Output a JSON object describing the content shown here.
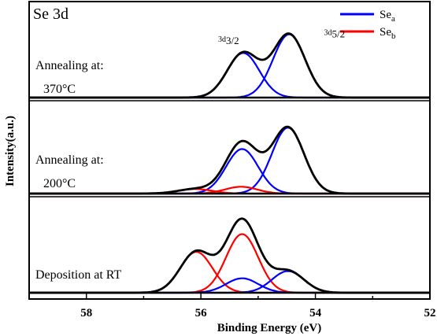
{
  "chart_data": {
    "type": "line",
    "title": "Se 3d",
    "xlabel": "Binding Energy (eV)",
    "ylabel": "Intensity(a.u.)",
    "xlim": [
      59,
      52
    ],
    "x_reversed": true,
    "xticks": [
      58,
      56,
      54,
      52
    ],
    "yticks_shown": false,
    "legend": {
      "placement": "top-right",
      "entries": [
        {
          "base": "Se",
          "sub": "a",
          "color": "#0000ff"
        },
        {
          "base": "Se",
          "sub": "b",
          "color": "#ff0000"
        }
      ]
    },
    "peak_labels": [
      {
        "base": "3d",
        "sub": "3/2",
        "x": 55.7,
        "y": 1.2
      },
      {
        "base": "3d",
        "sub": "5/2",
        "x": 53.85,
        "y": 1.35
      }
    ],
    "colors": {
      "envelope": "#000000",
      "Se_a": "#0000ff",
      "Se_b": "#ff0000"
    },
    "panels": [
      {
        "label_lines": [
          "Annealing at:",
          "370°C"
        ],
        "ymax": 1.8,
        "components": [
          {
            "group": "Se_a",
            "color": "#0000ff",
            "center": 55.26,
            "amplitude": 1.0,
            "width": 0.28
          },
          {
            "group": "Se_a",
            "color": "#0000ff",
            "center": 54.46,
            "amplitude": 1.42,
            "width": 0.28
          }
        ]
      },
      {
        "label_lines": [
          "Annealing at:",
          "200°C"
        ],
        "ymax": 1.8,
        "components": [
          {
            "group": "Se_a",
            "color": "#0000ff",
            "center": 55.28,
            "amplitude": 0.98,
            "width": 0.28
          },
          {
            "group": "Se_a",
            "color": "#0000ff",
            "center": 54.48,
            "amplitude": 1.45,
            "width": 0.28
          },
          {
            "group": "Se_b",
            "color": "#ff0000",
            "center": 56.1,
            "amplitude": 0.1,
            "width": 0.3
          },
          {
            "group": "Se_b",
            "color": "#ff0000",
            "center": 55.3,
            "amplitude": 0.15,
            "width": 0.28
          }
        ]
      },
      {
        "label_lines": [
          "Deposition at RT"
        ],
        "ymax": 1.8,
        "components": [
          {
            "group": "Se_b",
            "color": "#ff0000",
            "center": 56.08,
            "amplitude": 0.85,
            "width": 0.28
          },
          {
            "group": "Se_b",
            "color": "#ff0000",
            "center": 55.28,
            "amplitude": 1.22,
            "width": 0.28
          },
          {
            "group": "Se_a",
            "color": "#0000ff",
            "center": 55.28,
            "amplitude": 0.3,
            "width": 0.28
          },
          {
            "group": "Se_a",
            "color": "#0000ff",
            "center": 54.48,
            "amplitude": 0.45,
            "width": 0.28
          }
        ]
      }
    ]
  }
}
